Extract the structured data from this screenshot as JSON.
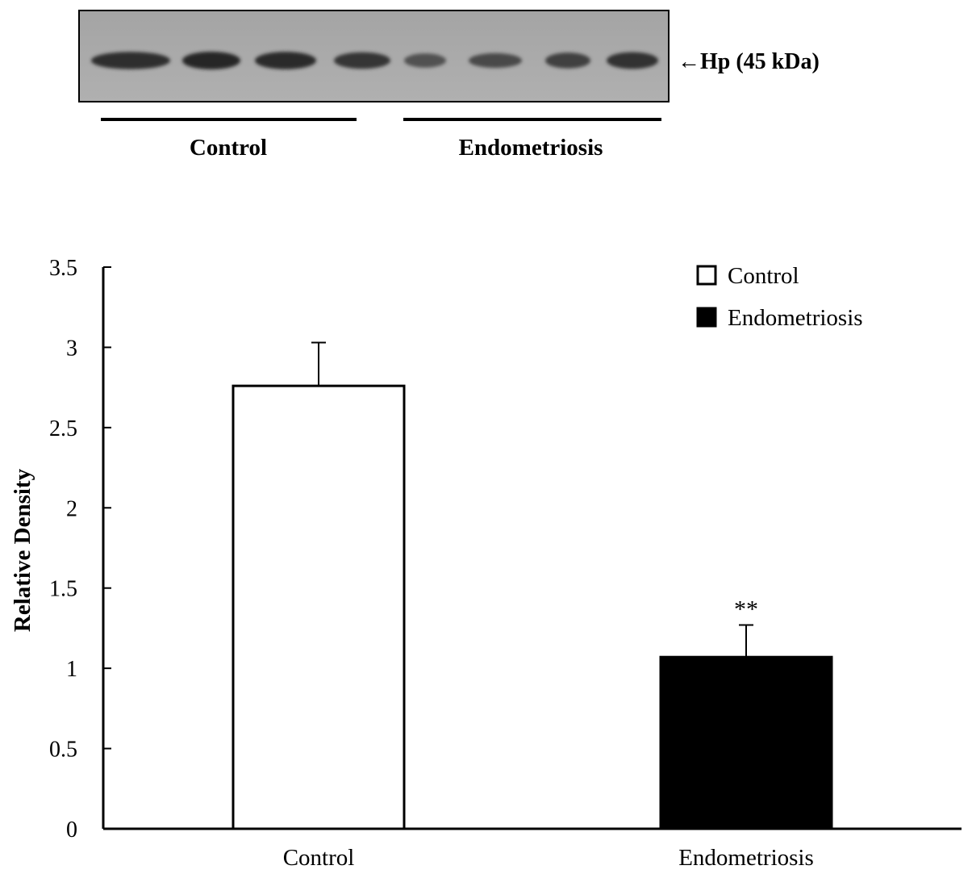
{
  "blot": {
    "band_label": "←Hp (45 kDa)",
    "group_labels": [
      "Control",
      "Endometriosis"
    ],
    "lane_intensity": [
      0.95,
      1.0,
      0.97,
      0.85,
      0.55,
      0.62,
      0.75,
      0.88
    ],
    "lane_group": [
      0,
      0,
      0,
      0,
      1,
      1,
      1,
      1
    ]
  },
  "chart_data": {
    "type": "bar",
    "categories": [
      "Control",
      "Endometriosis"
    ],
    "series": [
      {
        "name": "Control",
        "values": [
          2.76,
          null
        ],
        "errors": [
          0.27,
          null
        ],
        "color": "#ffffff"
      },
      {
        "name": "Endometriosis",
        "values": [
          null,
          1.07
        ],
        "errors": [
          null,
          0.2
        ],
        "color": "#000000"
      }
    ],
    "values": [
      2.76,
      1.07
    ],
    "errors": [
      0.27,
      0.2
    ],
    "bar_colors": [
      "#ffffff",
      "#000000"
    ],
    "annotations": [
      {
        "category": "Endometriosis",
        "text": "**"
      }
    ],
    "ylabel": "Relative Density",
    "xlabel": "",
    "ylim": [
      0,
      3.5
    ],
    "yticks": [
      "0",
      "0.5",
      "1",
      "1.5",
      "2",
      "2.5",
      "3",
      "3.5"
    ],
    "ytick_values": [
      0,
      0.5,
      1,
      1.5,
      2,
      2.5,
      3,
      3.5
    ],
    "legend": {
      "placement": "top-right",
      "entries": [
        {
          "label": "Control",
          "color": "#ffffff"
        },
        {
          "label": "Endometriosis",
          "color": "#000000"
        }
      ]
    },
    "grid": false
  }
}
